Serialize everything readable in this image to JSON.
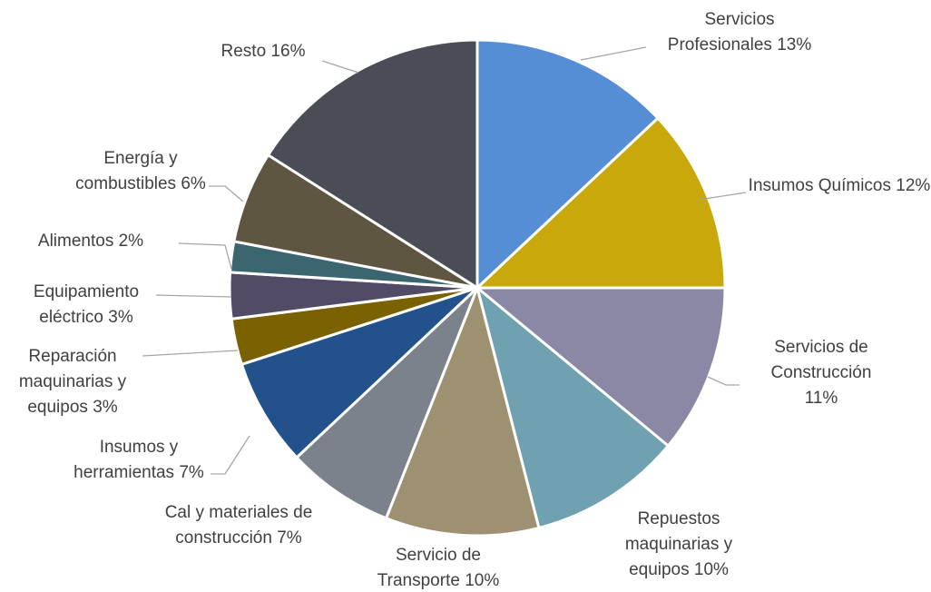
{
  "chart_data": {
    "type": "pie",
    "categories": [
      "Servicios Profesionales",
      "Insumos Químicos",
      "Servicios de Construcción",
      "Repuestos maquinarias y equipos",
      "Servicio de Transporte",
      "Cal y materiales de construcción",
      "Insumos y herramientas",
      "Reparación maquinarias y equipos",
      "Equipamiento eléctrico",
      "Alimentos",
      "Energía y combustibles",
      "Resto"
    ],
    "values": [
      13,
      12,
      11,
      10,
      10,
      7,
      7,
      3,
      3,
      2,
      6,
      16
    ],
    "value_labels": [
      "13%",
      "12%",
      "11%",
      "10%",
      "10%",
      "7%",
      "7%",
      "3%",
      "3%",
      "2%",
      "6%",
      "16%"
    ],
    "colors": [
      "#558ed5",
      "#c9a80b",
      "#8b88a5",
      "#6fa1b0",
      "#9e9171",
      "#7c828c",
      "#23518c",
      "#7a6102",
      "#524b67",
      "#3b6670",
      "#5f5641",
      "#4a4d55"
    ]
  }
}
